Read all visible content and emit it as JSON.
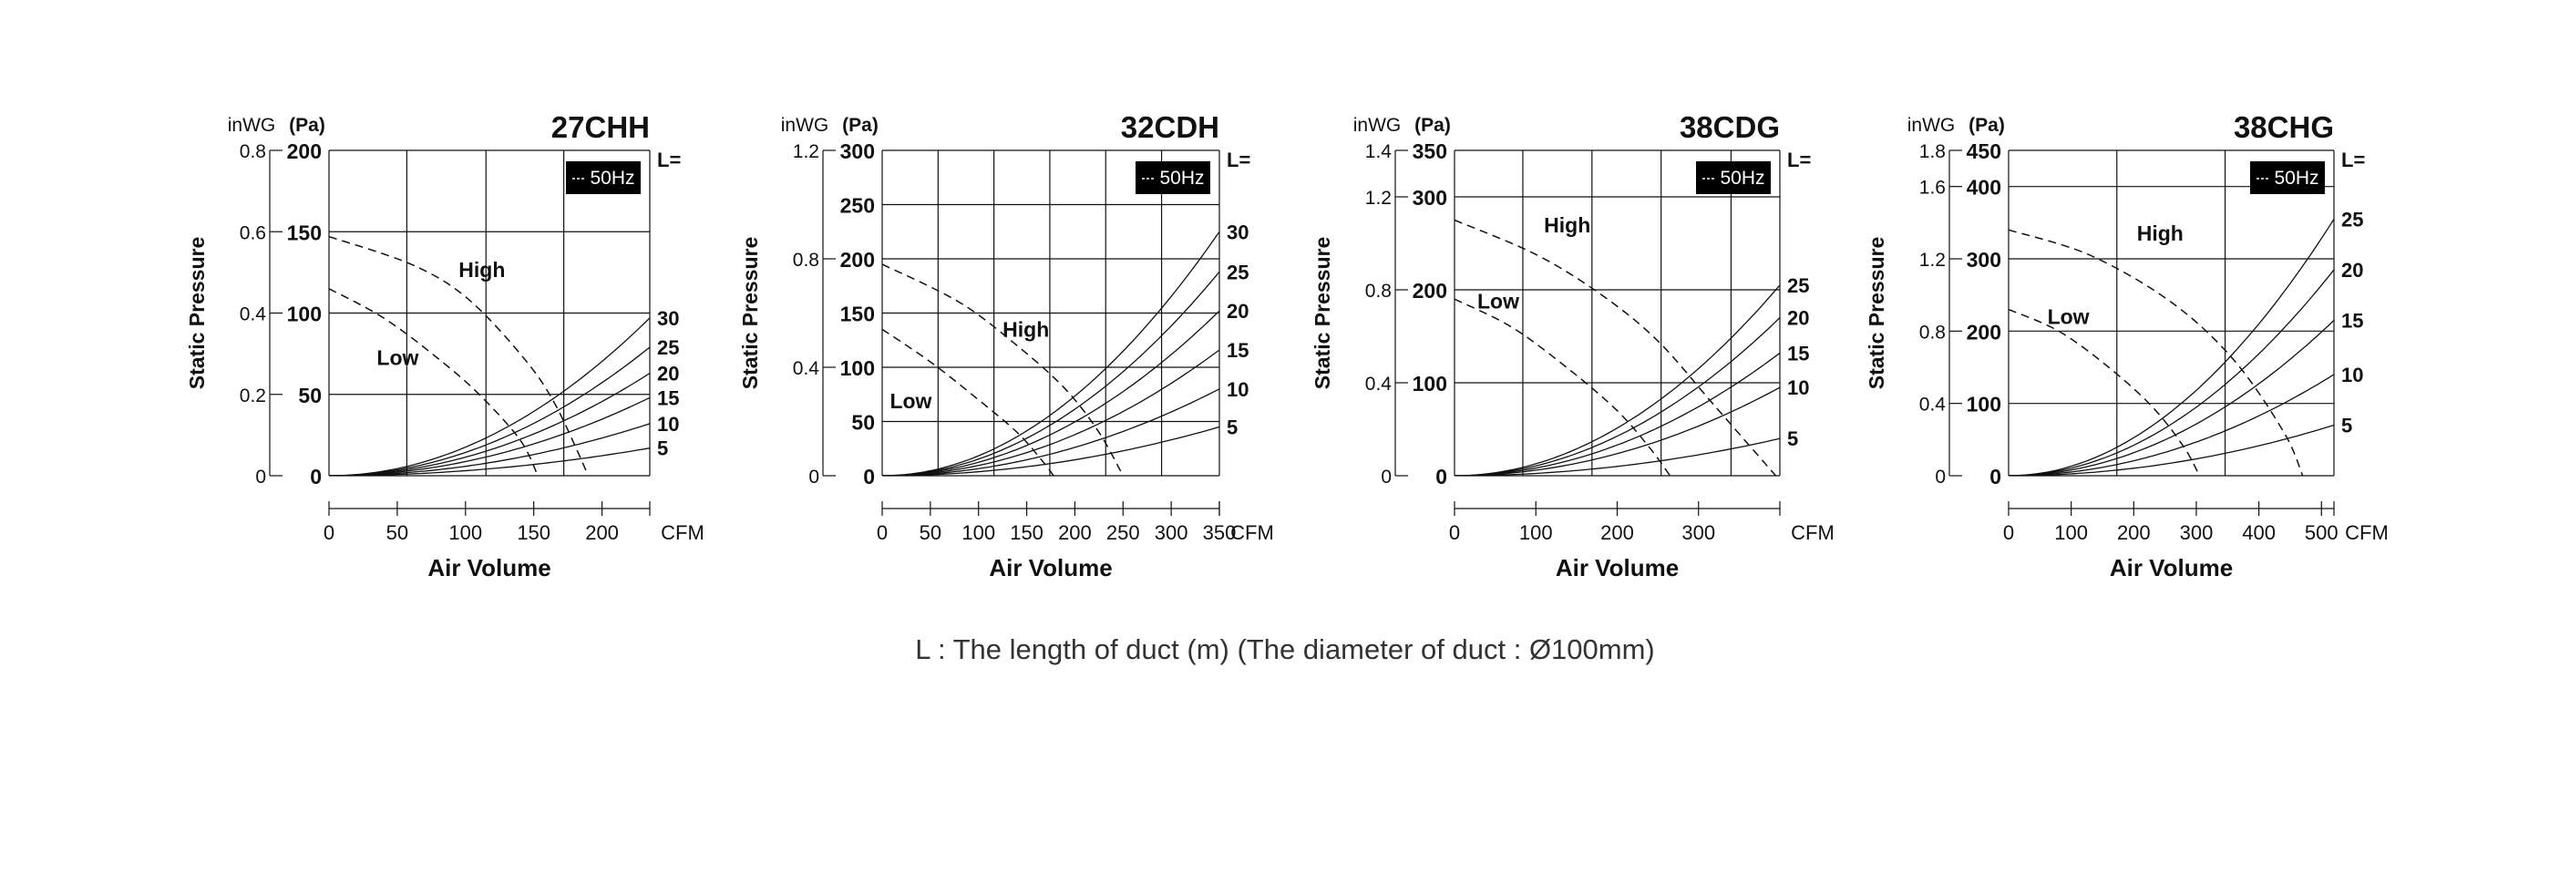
{
  "caption": "L : The length of duct (m) (The diameter of duct : Ø100mm)",
  "chart_data": [
    {
      "type": "line",
      "title": "27CHH",
      "badge": "50Hz",
      "ylabel": "Static Pressure",
      "xlabel": "Air Volume",
      "x_unit": "CFM",
      "y_unit_left": "inWG",
      "y_unit_right": "(Pa)",
      "xlim": [
        0,
        235
      ],
      "ylim": [
        0,
        200
      ],
      "x_ticks": [
        0,
        50,
        100,
        150,
        200
      ],
      "y_ticks_pa": [
        0,
        50,
        100,
        150,
        200
      ],
      "y_ticks_inwg": [
        {
          "label": "0",
          "pa": 0
        },
        {
          "label": "0.2",
          "pa": 50
        },
        {
          "label": "0.4",
          "pa": 100
        },
        {
          "label": "0.6",
          "pa": 150
        },
        {
          "label": "0.8",
          "pa": 200
        }
      ],
      "grid_x": [
        0,
        57,
        115,
        172,
        235
      ],
      "grid_y": [
        0,
        50,
        100,
        150,
        200
      ],
      "legend_header": "L=",
      "series": [
        {
          "name": "5",
          "dash": false,
          "x": [
            0,
            235
          ],
          "y": [
            0,
            17
          ]
        },
        {
          "name": "10",
          "dash": false,
          "x": [
            0,
            235
          ],
          "y": [
            0,
            32
          ]
        },
        {
          "name": "15",
          "dash": false,
          "x": [
            0,
            235
          ],
          "y": [
            0,
            48
          ]
        },
        {
          "name": "20",
          "dash": false,
          "x": [
            0,
            235
          ],
          "y": [
            0,
            63
          ]
        },
        {
          "name": "25",
          "dash": false,
          "x": [
            0,
            235
          ],
          "y": [
            0,
            79
          ]
        },
        {
          "name": "30",
          "dash": false,
          "x": [
            0,
            235
          ],
          "y": [
            0,
            97
          ]
        },
        {
          "name": "High",
          "dash": true,
          "x": [
            0,
            60,
            100,
            140,
            165,
            190
          ],
          "y": [
            147,
            130,
            110,
            75,
            45,
            0
          ]
        },
        {
          "name": "Low",
          "dash": true,
          "x": [
            0,
            40,
            80,
            110,
            140,
            153
          ],
          "y": [
            115,
            97,
            72,
            50,
            22,
            0
          ]
        }
      ],
      "annotations": [
        {
          "text": "High",
          "x": 95,
          "y": 122
        },
        {
          "text": "Low",
          "x": 35,
          "y": 68
        }
      ]
    },
    {
      "type": "line",
      "title": "32CDH",
      "badge": "50Hz",
      "ylabel": "Static Pressure",
      "xlabel": "Air Volume",
      "x_unit": "CFM",
      "y_unit_left": "inWG",
      "y_unit_right": "(Pa)",
      "xlim": [
        0,
        350
      ],
      "ylim": [
        0,
        300
      ],
      "x_ticks": [
        0,
        50,
        100,
        150,
        200,
        250,
        300,
        350
      ],
      "y_ticks_pa": [
        0,
        50,
        100,
        150,
        200,
        250,
        300
      ],
      "y_ticks_inwg": [
        {
          "label": "0",
          "pa": 0
        },
        {
          "label": "0.4",
          "pa": 100
        },
        {
          "label": "0.8",
          "pa": 200
        },
        {
          "label": "1.2",
          "pa": 300
        }
      ],
      "grid_x": [
        0,
        58,
        116,
        174,
        232,
        290,
        350
      ],
      "grid_y": [
        0,
        50,
        100,
        150,
        200,
        250,
        300
      ],
      "legend_header": "L=",
      "series": [
        {
          "name": "5",
          "dash": false,
          "x": [
            0,
            350
          ],
          "y": [
            0,
            45
          ]
        },
        {
          "name": "10",
          "dash": false,
          "x": [
            0,
            350
          ],
          "y": [
            0,
            80
          ]
        },
        {
          "name": "15",
          "dash": false,
          "x": [
            0,
            350
          ],
          "y": [
            0,
            116
          ]
        },
        {
          "name": "20",
          "dash": false,
          "x": [
            0,
            350
          ],
          "y": [
            0,
            152
          ]
        },
        {
          "name": "25",
          "dash": false,
          "x": [
            0,
            350
          ],
          "y": [
            0,
            188
          ]
        },
        {
          "name": "30",
          "dash": false,
          "x": [
            0,
            350
          ],
          "y": [
            0,
            225
          ]
        },
        {
          "name": "High",
          "dash": true,
          "x": [
            0,
            80,
            140,
            190,
            225,
            250
          ],
          "y": [
            195,
            160,
            120,
            80,
            40,
            0
          ]
        },
        {
          "name": "Low",
          "dash": true,
          "x": [
            0,
            50,
            100,
            140,
            165,
            178
          ],
          "y": [
            135,
            105,
            70,
            40,
            15,
            0
          ]
        }
      ],
      "annotations": [
        {
          "text": "High",
          "x": 125,
          "y": 128
        },
        {
          "text": "Low",
          "x": 8,
          "y": 62
        }
      ]
    },
    {
      "type": "line",
      "title": "38CDG",
      "badge": "50Hz",
      "ylabel": "Static Pressure",
      "xlabel": "Air Volume",
      "x_unit": "CFM",
      "y_unit_left": "inWG",
      "y_unit_right": "(Pa)",
      "xlim": [
        0,
        400
      ],
      "ylim": [
        0,
        350
      ],
      "x_ticks": [
        0,
        100,
        200,
        300
      ],
      "y_ticks_pa": [
        0,
        100,
        200,
        300,
        350
      ],
      "y_ticks_inwg": [
        {
          "label": "0",
          "pa": 0
        },
        {
          "label": "0.4",
          "pa": 100
        },
        {
          "label": "0.8",
          "pa": 200
        },
        {
          "label": "1.2",
          "pa": 300
        },
        {
          "label": "1.4",
          "pa": 350
        }
      ],
      "grid_x": [
        0,
        84,
        169,
        254,
        340,
        400
      ],
      "grid_y": [
        0,
        100,
        200,
        300,
        350
      ],
      "legend_header": "L=",
      "series": [
        {
          "name": "5",
          "dash": false,
          "x": [
            0,
            400
          ],
          "y": [
            0,
            40
          ]
        },
        {
          "name": "10",
          "dash": false,
          "x": [
            0,
            400
          ],
          "y": [
            0,
            95
          ]
        },
        {
          "name": "15",
          "dash": false,
          "x": [
            0,
            400
          ],
          "y": [
            0,
            132
          ]
        },
        {
          "name": "20",
          "dash": false,
          "x": [
            0,
            400
          ],
          "y": [
            0,
            170
          ]
        },
        {
          "name": "25",
          "dash": false,
          "x": [
            0,
            400
          ],
          "y": [
            0,
            205
          ]
        },
        {
          "name": "High",
          "dash": true,
          "x": [
            0,
            100,
            180,
            250,
            320,
            395
          ],
          "y": [
            275,
            238,
            195,
            145,
            75,
            0
          ]
        },
        {
          "name": "Low",
          "dash": true,
          "x": [
            0,
            70,
            140,
            200,
            240,
            265
          ],
          "y": [
            190,
            160,
            115,
            70,
            30,
            0
          ]
        }
      ],
      "annotations": [
        {
          "text": "High",
          "x": 110,
          "y": 262
        },
        {
          "text": "Low",
          "x": 28,
          "y": 180
        }
      ]
    },
    {
      "type": "line",
      "title": "38CHG",
      "badge": "50Hz",
      "ylabel": "Static Pressure",
      "xlabel": "Air Volume",
      "x_unit": "CFM",
      "y_unit_left": "inWG",
      "y_unit_right": "(Pa)",
      "xlim": [
        0,
        520
      ],
      "ylim": [
        0,
        450
      ],
      "x_ticks": [
        0,
        100,
        200,
        300,
        400,
        500
      ],
      "y_ticks_pa": [
        0,
        100,
        200,
        300,
        400,
        450
      ],
      "y_ticks_inwg": [
        {
          "label": "0",
          "pa": 0
        },
        {
          "label": "0.4",
          "pa": 100
        },
        {
          "label": "0.8",
          "pa": 200
        },
        {
          "label": "1.2",
          "pa": 300
        },
        {
          "label": "1.6",
          "pa": 400
        },
        {
          "label": "1.8",
          "pa": 450
        }
      ],
      "grid_x": [
        0,
        173,
        346,
        520
      ],
      "grid_y": [
        0,
        100,
        200,
        300,
        400,
        450
      ],
      "legend_header": "L=",
      "series": [
        {
          "name": "5",
          "dash": false,
          "x": [
            0,
            520
          ],
          "y": [
            0,
            70
          ]
        },
        {
          "name": "10",
          "dash": false,
          "x": [
            0,
            520
          ],
          "y": [
            0,
            140
          ]
        },
        {
          "name": "15",
          "dash": false,
          "x": [
            0,
            520
          ],
          "y": [
            0,
            215
          ]
        },
        {
          "name": "20",
          "dash": false,
          "x": [
            0,
            520
          ],
          "y": [
            0,
            285
          ]
        },
        {
          "name": "25",
          "dash": false,
          "x": [
            0,
            520
          ],
          "y": [
            0,
            355
          ]
        },
        {
          "name": "High",
          "dash": true,
          "x": [
            0,
            130,
            260,
            360,
            440,
            470
          ],
          "y": [
            340,
            305,
            240,
            160,
            60,
            0
          ]
        },
        {
          "name": "Low",
          "dash": true,
          "x": [
            0,
            80,
            160,
            230,
            280,
            305
          ],
          "y": [
            230,
            200,
            150,
            95,
            40,
            0
          ]
        }
      ],
      "annotations": [
        {
          "text": "High",
          "x": 205,
          "y": 325
        },
        {
          "text": "Low",
          "x": 62,
          "y": 210
        }
      ]
    }
  ]
}
